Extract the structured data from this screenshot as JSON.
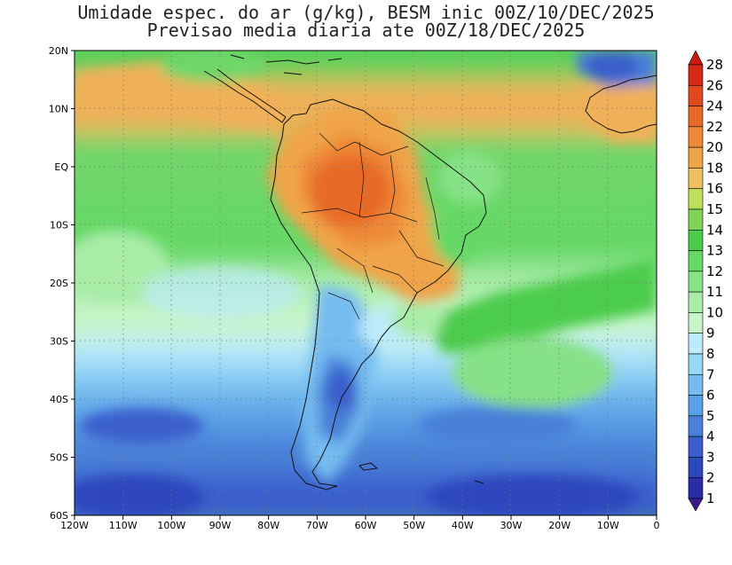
{
  "title": {
    "line1": "Umidade espec. do ar (g/kg), BESM inic 00Z/10/DEC/2025",
    "line2": "Previsao media diaria ate 00Z/18/DEC/2025"
  },
  "axes": {
    "y_ticks": [
      "20N",
      "10N",
      "EQ",
      "10S",
      "20S",
      "30S",
      "40S",
      "50S",
      "60S"
    ],
    "x_ticks": [
      "120W",
      "110W",
      "100W",
      "90W",
      "80W",
      "70W",
      "60W",
      "50W",
      "40W",
      "30W",
      "20W",
      "10W",
      "0"
    ]
  },
  "colorbar": {
    "labels": [
      "1",
      "2",
      "3",
      "4",
      "5",
      "6",
      "7",
      "8",
      "9",
      "10",
      "11",
      "12",
      "13",
      "14",
      "15",
      "16",
      "18",
      "20",
      "22",
      "24",
      "26",
      "28"
    ],
    "colors": [
      "#3c1a8c",
      "#2c2ca8",
      "#2e46bd",
      "#3a5fcd",
      "#4a80d8",
      "#5aa0e6",
      "#74bcf0",
      "#96d6f6",
      "#bdebfa",
      "#c8f5c8",
      "#a8eca8",
      "#86e286",
      "#66d866",
      "#4ccc4c",
      "#80d45a",
      "#bde05a",
      "#f0c060",
      "#f0a44a",
      "#ee8838",
      "#e86a28",
      "#e04820",
      "#d82a18",
      "#c81a10"
    ]
  },
  "map_regions": {
    "south_america": "continent-outline",
    "africa": "continent-outline"
  }
}
